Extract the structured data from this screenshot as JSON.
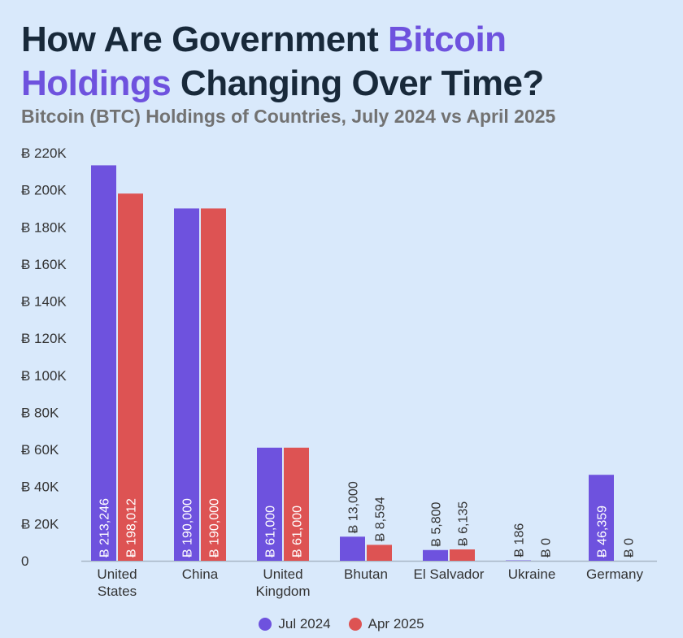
{
  "title": {
    "part1": "How Are Government ",
    "part2": "Bitcoin",
    "part3": "Holdings",
    "part4": " Changing Over Time?"
  },
  "subtitle": "Bitcoin (BTC) Holdings of Countries, July 2024 vs April 2025",
  "colors": {
    "jul": "#6e52de",
    "apr": "#dd5353",
    "highlight": "#6e52de",
    "axis_text": "#333333",
    "axis_line": "#a9b7c6"
  },
  "chart_data": {
    "type": "bar",
    "categories": [
      [
        "United",
        "States"
      ],
      [
        "China"
      ],
      [
        "United",
        "Kingdom"
      ],
      [
        "Bhutan"
      ],
      [
        "El Salvador"
      ],
      [
        "Ukraine"
      ],
      [
        "Germany"
      ]
    ],
    "series": [
      {
        "name": "Jul 2024",
        "values": [
          213246,
          190000,
          61000,
          13000,
          5800,
          186,
          46359
        ],
        "labels": [
          "Ƀ 213,246",
          "Ƀ 190,000",
          "Ƀ 61,000",
          "Ƀ 13,000",
          "Ƀ 5,800",
          "Ƀ 186",
          "Ƀ 46,359"
        ]
      },
      {
        "name": "Apr 2025",
        "values": [
          198012,
          190000,
          61000,
          8594,
          6135,
          0,
          0
        ],
        "labels": [
          "Ƀ 198,012",
          "Ƀ 190,000",
          "Ƀ 61,000",
          "Ƀ 8,594",
          "Ƀ 6,135",
          "Ƀ 0",
          "Ƀ 0"
        ]
      }
    ],
    "yticks": [
      "0",
      "Ƀ 20K",
      "Ƀ 40K",
      "Ƀ 60K",
      "Ƀ 80K",
      "Ƀ 100K",
      "Ƀ 120K",
      "Ƀ 140K",
      "Ƀ 160K",
      "Ƀ 180K",
      "Ƀ 200K",
      "Ƀ 220K"
    ],
    "ylim": [
      0,
      220000
    ],
    "grid": false,
    "legend_position": "bottom-center"
  }
}
